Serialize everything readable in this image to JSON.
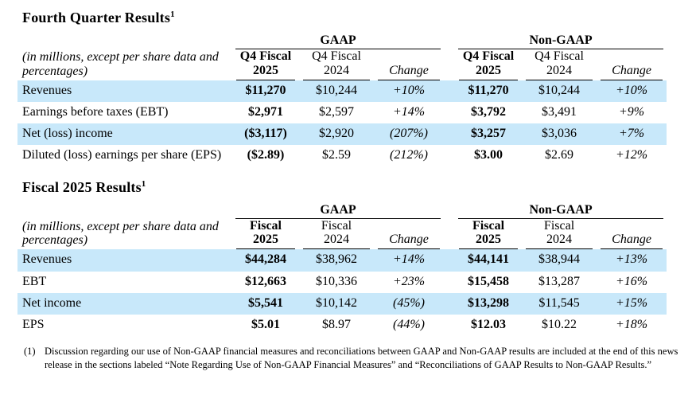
{
  "page": {
    "background": "#ffffff",
    "text_color": "#000000",
    "highlight_color": "#c8e8fa",
    "border_color": "#000000"
  },
  "q4": {
    "title": "Fourth Quarter Results",
    "title_sup": "1",
    "note": "(in millions, except per share data and percentages)",
    "groups": [
      "GAAP",
      "Non-GAAP"
    ],
    "columns": [
      "Q4 Fiscal 2025",
      "Q4 Fiscal 2024",
      "Change",
      "Q4 Fiscal 2025",
      "Q4 Fiscal 2024",
      "Change"
    ],
    "rows": [
      {
        "label": "Revenues",
        "highlight": true,
        "values": [
          "$11,270",
          "$10,244",
          "+10%",
          "$11,270",
          "$10,244",
          "+10%"
        ]
      },
      {
        "label": "Earnings before taxes (EBT)",
        "highlight": false,
        "values": [
          "$2,971",
          "$2,597",
          "+14%",
          "$3,792",
          "$3,491",
          "+9%"
        ]
      },
      {
        "label": "Net (loss) income",
        "highlight": true,
        "values": [
          "($3,117)",
          "$2,920",
          "(207%)",
          "$3,257",
          "$3,036",
          "+7%"
        ]
      },
      {
        "label": "Diluted (loss) earnings per share (EPS)",
        "highlight": false,
        "values": [
          "($2.89)",
          "$2.59",
          "(212%)",
          "$3.00",
          "$2.69",
          "+12%"
        ]
      }
    ]
  },
  "fy": {
    "title": "Fiscal 2025 Results",
    "title_sup": "1",
    "note": "(in millions, except per share data and percentages)",
    "groups": [
      "GAAP",
      "Non-GAAP"
    ],
    "columns": [
      "Fiscal 2025",
      "Fiscal 2024",
      "Change",
      "Fiscal 2025",
      "Fiscal 2024",
      "Change"
    ],
    "rows": [
      {
        "label": "Revenues",
        "highlight": true,
        "values": [
          "$44,284",
          "$38,962",
          "+14%",
          "$44,141",
          "$38,944",
          "+13%"
        ]
      },
      {
        "label": "EBT",
        "highlight": false,
        "values": [
          "$12,663",
          "$10,336",
          "+23%",
          "$15,458",
          "$13,287",
          "+16%"
        ]
      },
      {
        "label": "Net income",
        "highlight": true,
        "values": [
          "$5,541",
          "$10,142",
          "(45%)",
          "$13,298",
          "$11,545",
          "+15%"
        ]
      },
      {
        "label": "EPS",
        "highlight": false,
        "values": [
          "$5.01",
          "$8.97",
          "(44%)",
          "$12.03",
          "$10.22",
          "+18%"
        ]
      }
    ]
  },
  "footnote": {
    "marker": "(1)",
    "text": "Discussion regarding our use of Non-GAAP financial measures and reconciliations between GAAP and Non-GAAP results are included at the end of this news release in the sections labeled “Note Regarding Use of Non-GAAP Financial Measures” and “Reconciliations of GAAP Results to Non-GAAP Results.”"
  }
}
